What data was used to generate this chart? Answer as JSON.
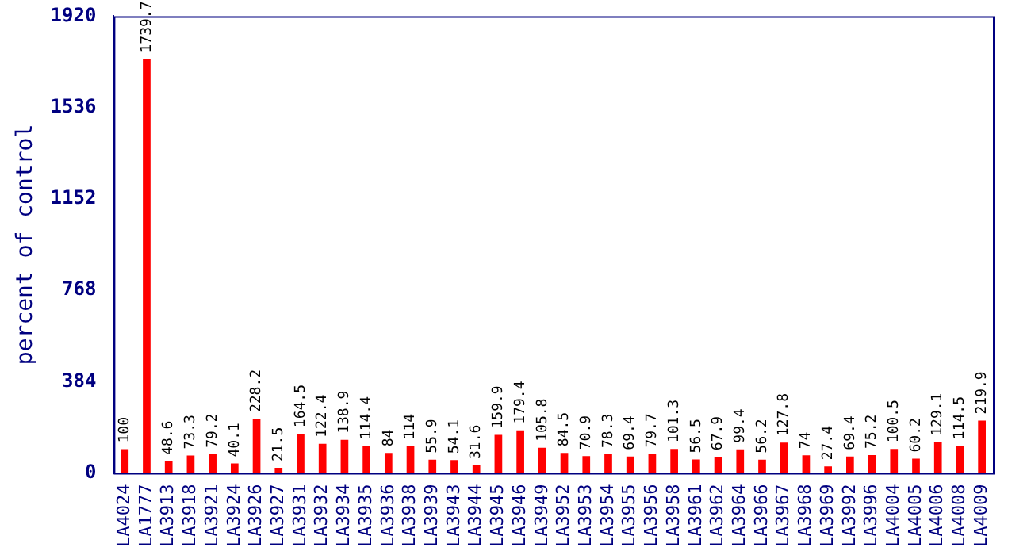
{
  "chart_data": {
    "type": "bar",
    "ylabel": "percent of control",
    "categories": [
      "LA4024",
      "LA1777",
      "LA3913",
      "LA3918",
      "LA3921",
      "LA3924",
      "LA3926",
      "LA3927",
      "LA3931",
      "LA3932",
      "LA3934",
      "LA3935",
      "LA3936",
      "LA3938",
      "LA3939",
      "LA3943",
      "LA3944",
      "LA3945",
      "LA3946",
      "LA3949",
      "LA3952",
      "LA3953",
      "LA3954",
      "LA3955",
      "LA3956",
      "LA3958",
      "LA3961",
      "LA3962",
      "LA3964",
      "LA3966",
      "LA3967",
      "LA3968",
      "LA3969",
      "LA3992",
      "LA3996",
      "LA4004",
      "LA4005",
      "LA4006",
      "LA4008",
      "LA4009"
    ],
    "values": [
      100,
      1739.7,
      48.6,
      73.3,
      79.2,
      40.1,
      228.2,
      21.5,
      164.5,
      122.4,
      138.9,
      114.4,
      84,
      114,
      55.9,
      54.1,
      31.6,
      159.9,
      179.4,
      105.8,
      84.5,
      70.9,
      78.3,
      69.4,
      79.7,
      101.3,
      56.5,
      67.9,
      99.4,
      56.2,
      127.8,
      74,
      27.4,
      69.4,
      75.2,
      100.5,
      60.2,
      129.1,
      114.5,
      219.9
    ],
    "color": "#ff0000",
    "ylim": [
      0,
      1920
    ],
    "yticks": [
      0,
      384,
      768,
      1152,
      1536,
      1920
    ],
    "grid": false,
    "legend": false,
    "data_labels": true
  }
}
